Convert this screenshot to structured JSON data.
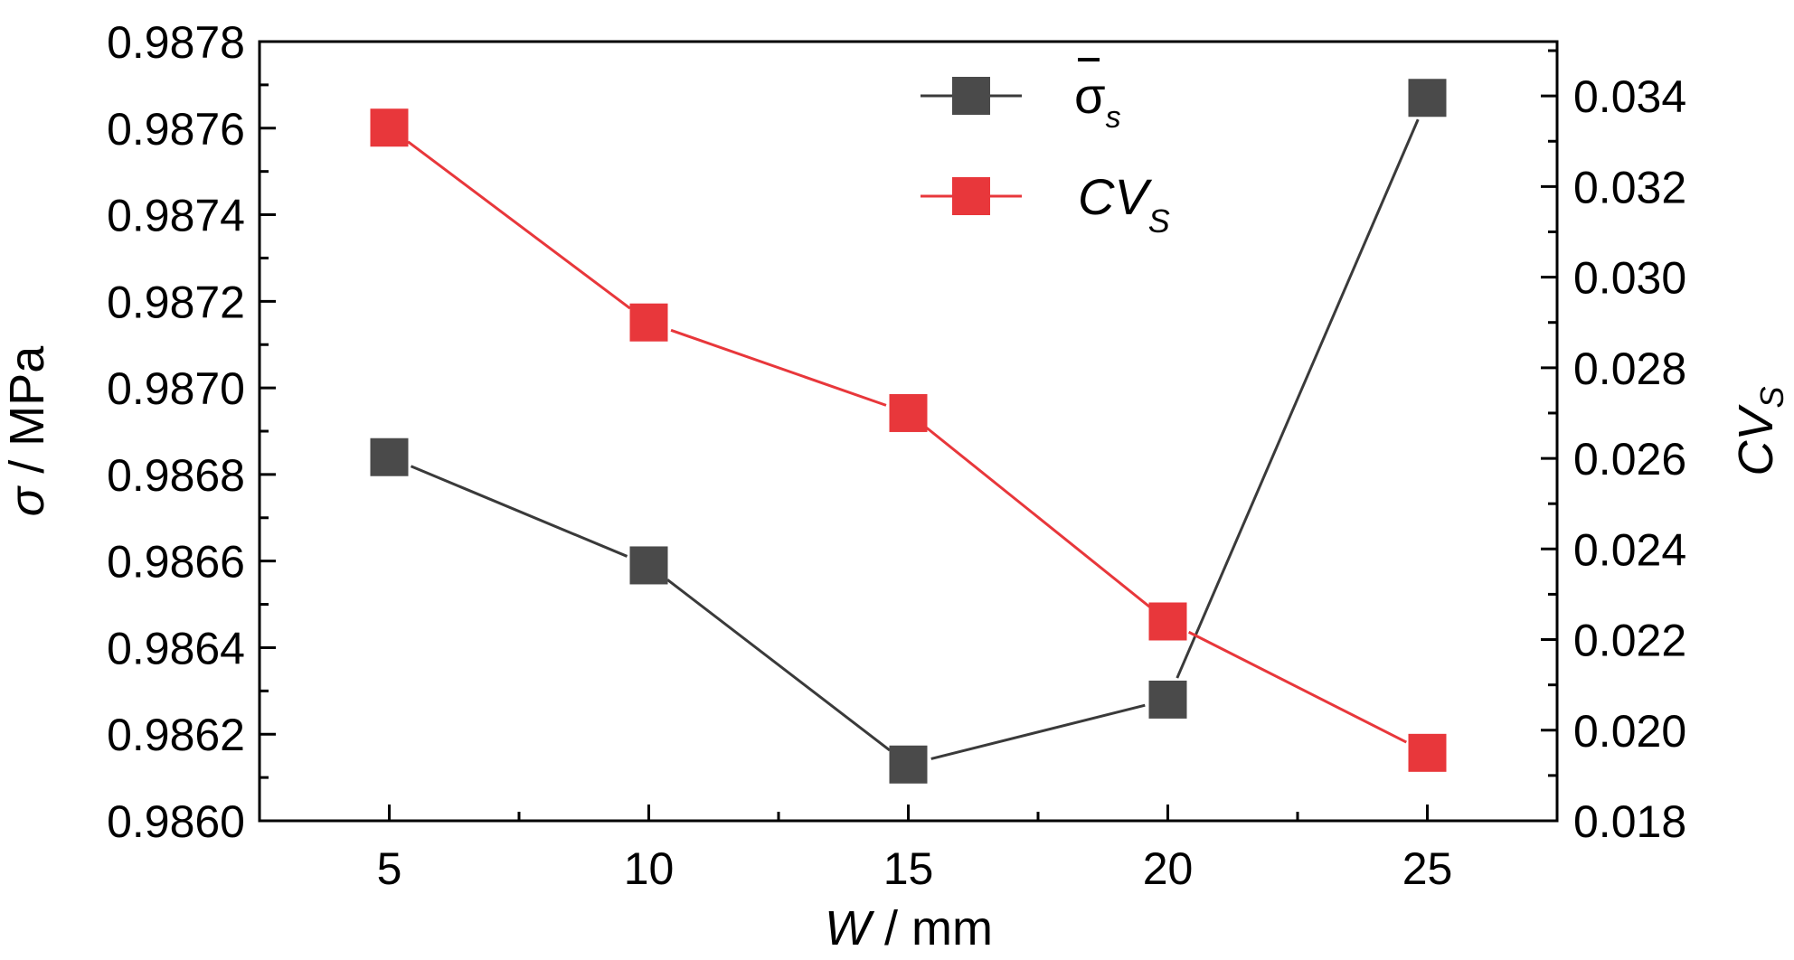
{
  "chart_data": {
    "type": "line",
    "x": [
      5,
      10,
      15,
      20,
      25
    ],
    "xlim": [
      2.5,
      27.5
    ],
    "x_ticks": [
      "5",
      "10",
      "15",
      "20",
      "25"
    ],
    "xlabel": {
      "var": "W",
      "rest": " / mm"
    },
    "ylabel_left": {
      "var": "σ",
      "rest": " / MPa"
    },
    "ylabel_right": {
      "var": "CV",
      "sub": "S"
    },
    "ylim_left": [
      0.986,
      0.9878
    ],
    "ylim_right": [
      0.018,
      0.0352
    ],
    "y_ticks_left": [
      "0.9860",
      "0.9862",
      "0.9864",
      "0.9866",
      "0.9868",
      "0.9870",
      "0.9872",
      "0.9874",
      "0.9876",
      "0.9878"
    ],
    "y_ticks_right": [
      "0.018",
      "0.020",
      "0.022",
      "0.024",
      "0.026",
      "0.028",
      "0.030",
      "0.032",
      "0.034"
    ],
    "grid": false,
    "legend_position": "top-center",
    "series": [
      {
        "name": "σs",
        "legend_main": "σ",
        "legend_sub": "s",
        "axis": "left",
        "color": "#4a4a4a",
        "line_color": "#3a3a3a",
        "values": [
          0.98684,
          0.98659,
          0.98613,
          0.98628,
          0.98767
        ]
      },
      {
        "name": "CVS",
        "legend_main": "CV",
        "legend_sub": "S",
        "axis": "right",
        "color": "#e8373b",
        "line_color": "#e8373b",
        "values": [
          0.0333,
          0.029,
          0.027,
          0.0224,
          0.0195
        ]
      }
    ]
  }
}
